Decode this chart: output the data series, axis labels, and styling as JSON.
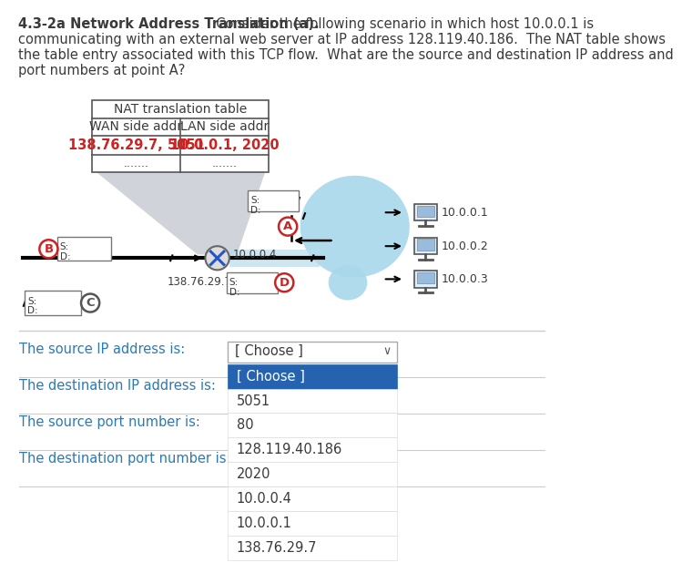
{
  "title_bold": "4.3-2a Network Address Translation (a).",
  "title_lines": [
    "  Consider the following scenario in which host 10.0.0.1 is",
    "communicating with an external web server at IP address 128.119.40.186.  The NAT table shows",
    "the table entry associated with this TCP flow.  What are the source and destination IP address and",
    "port numbers at point A?"
  ],
  "nat_table_title": "NAT translation table",
  "nat_col1_header": "WAN side addr",
  "nat_col2_header": "LAN side addr",
  "nat_row1_col1": "138.76.29.7, 5051",
  "nat_row1_col2": "10.0.0.1, 2020",
  "nat_dots": ".......",
  "router_ip": "138.76.29.7",
  "router_label": "10.0.0.4",
  "hosts": [
    "10.0.0.1",
    "10.0.0.2",
    "10.0.0.3"
  ],
  "dropdown_label": "[ Choose ]",
  "dropdown_options": [
    "[ Choose ]",
    "5051",
    "80",
    "128.119.40.186",
    "2020",
    "10.0.0.4",
    "10.0.0.1",
    "138.76.29.7"
  ],
  "question_labels": [
    "The source IP address is:",
    "The destination IP address is:",
    "The source port number is:",
    "The destination port number is:"
  ],
  "bg_color": "#ffffff",
  "text_color": "#3a3a3a",
  "title_color": "#2a7ab5",
  "red_text_color": "#cc2222",
  "circle_color_red": "#cc2222",
  "circle_color_grey": "#555555",
  "dropdown_header_bg": "#2563b0",
  "table_border_color": "#555555",
  "cloud_color": "#a8d8ea",
  "funnel_color_top": "#cccccc",
  "funnel_color_bottom": "#d0d8e0",
  "separator_color": "#cccccc",
  "router_fill": "#dddddd",
  "router_stroke": "#666666",
  "line_stroke": "#1a1a1a",
  "wan_line_color": "#add8e6"
}
